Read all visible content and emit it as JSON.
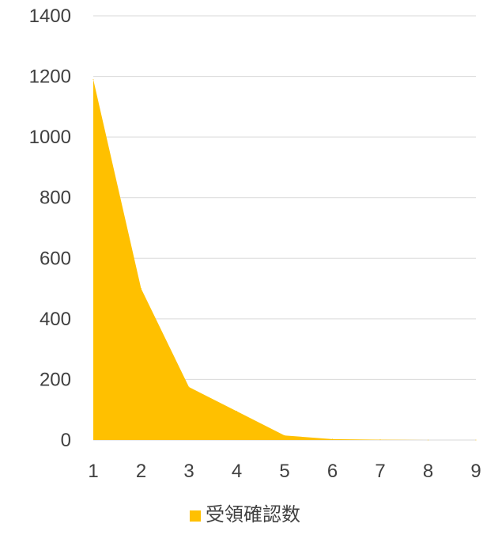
{
  "chart_data": {
    "type": "area",
    "x": [
      1,
      2,
      3,
      4,
      5,
      6,
      7,
      8,
      9
    ],
    "series": [
      {
        "name": "受領確認数",
        "values": [
          1190,
          500,
          175,
          95,
          15,
          3,
          1,
          0,
          0
        ],
        "color": "#FFC000"
      }
    ],
    "x_tick_labels": [
      "1",
      "2",
      "3",
      "4",
      "5",
      "6",
      "7",
      "8",
      "9"
    ],
    "y_tick_labels": [
      "0",
      "200",
      "400",
      "600",
      "800",
      "1000",
      "1200",
      "1400"
    ],
    "ylim": [
      0,
      1400
    ],
    "xlim": [
      1,
      9
    ],
    "y_ticks": [
      0,
      200,
      400,
      600,
      800,
      1000,
      1200,
      1400
    ],
    "grid": true,
    "legend_position": "bottom"
  }
}
